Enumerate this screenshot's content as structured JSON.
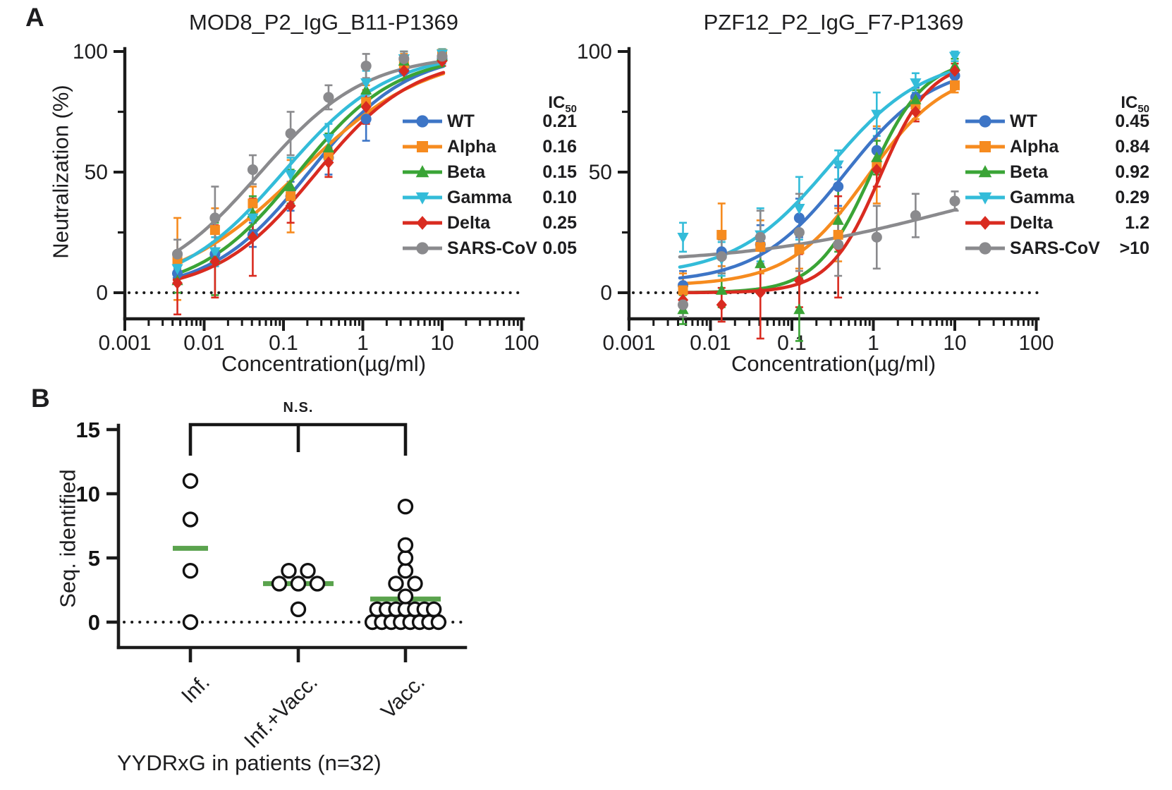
{
  "panel_a_label": "A",
  "panel_b_label": "B",
  "chart_data": {
    "dose_charts": [
      {
        "type": "line",
        "title": "MOD8_P2_IgG_B11-P1369",
        "xlabel": "Concentration(µg/ml)",
        "ylabel": "Neutralization (%)",
        "x_ticks": [
          "0.001",
          "0.01",
          "0.1",
          "1",
          "10",
          "100"
        ],
        "y_ticks": [
          "0",
          "50",
          "100"
        ],
        "ylim": [
          -15,
          100
        ],
        "grid": false,
        "legend_position": "right",
        "legend_header": {
          "text": "IC",
          "sub": "50"
        },
        "x": [
          0.0046,
          0.0137,
          0.041,
          0.123,
          0.37,
          1.1,
          3.3,
          10
        ],
        "series": [
          {
            "name": "WT",
            "marker": "circle",
            "color": "#3d75c6",
            "ic50": "0.21",
            "values": [
              8,
              16,
              24,
              40,
              56,
              72,
              92,
              97
            ],
            "errors": [
              4,
              5,
              5,
              6,
              7,
              9,
              4,
              2
            ],
            "curve": {
              "bottom": 0,
              "top": 100,
              "ec50": 0.21,
              "hill": 0.7
            }
          },
          {
            "name": "Alpha",
            "marker": "square",
            "color": "#f68b1f",
            "ic50": "0.16",
            "values": [
              14,
              26,
              37,
              40,
              57,
              79,
              95,
              99
            ],
            "errors": [
              17,
              9,
              7,
              15,
              9,
              7,
              4,
              2
            ],
            "curve": {
              "bottom": 0,
              "top": 100,
              "ec50": 0.16,
              "hill": 0.55
            }
          },
          {
            "name": "Beta",
            "marker": "triangle-up",
            "color": "#3aa436",
            "ic50": "0.15",
            "values": [
              5,
              14,
              33,
              44,
              60,
              84,
              96,
              98
            ],
            "errors": [
              5,
              15,
              7,
              7,
              6,
              9,
              4,
              2
            ],
            "curve": {
              "bottom": 0,
              "top": 99,
              "ec50": 0.15,
              "hill": 0.7
            }
          },
          {
            "name": "Gamma",
            "marker": "triangle-down",
            "color": "#33bcd9",
            "ic50": "0.10",
            "values": [
              10,
              17,
              31,
              49,
              64,
              87,
              97,
              99
            ],
            "errors": [
              6,
              6,
              7,
              7,
              6,
              5,
              3,
              2
            ],
            "curve": {
              "bottom": 0,
              "top": 100,
              "ec50": 0.1,
              "hill": 0.65
            }
          },
          {
            "name": "Delta",
            "marker": "diamond",
            "color": "#d92b20",
            "ic50": "0.25",
            "values": [
              4,
              13,
              23,
              36,
              54,
              77,
              92,
              96
            ],
            "errors": [
              13,
              15,
              16,
              7,
              6,
              7,
              4,
              2
            ],
            "curve": {
              "bottom": 0,
              "top": 98,
              "ec50": 0.25,
              "hill": 0.7
            }
          },
          {
            "name": "SARS-CoV",
            "marker": "circle",
            "color": "#8a8a8d",
            "ic50": "0.05",
            "values": [
              16,
              31,
              51,
              66,
              81,
              94,
              97,
              98
            ],
            "errors": [
              6,
              13,
              6,
              9,
              5,
              5,
              3,
              2
            ],
            "curve": {
              "bottom": 0,
              "top": 99,
              "ec50": 0.05,
              "hill": 0.65
            }
          }
        ]
      },
      {
        "type": "line",
        "title": "PZF12_P2_IgG_F7-P1369",
        "xlabel": "Concentration(µg/ml)",
        "ylabel": "",
        "x_ticks": [
          "0.001",
          "0.01",
          "0.1",
          "1",
          "10",
          "100"
        ],
        "y_ticks": [
          "0",
          "50",
          "100"
        ],
        "ylim": [
          -15,
          100
        ],
        "grid": false,
        "legend_position": "right",
        "legend_header": {
          "text": "IC",
          "sub": "50"
        },
        "x": [
          0.0046,
          0.0137,
          0.041,
          0.123,
          0.37,
          1.1,
          3.3,
          10
        ],
        "series": [
          {
            "name": "WT",
            "marker": "circle",
            "color": "#3d75c6",
            "ic50": "0.45",
            "values": [
              3,
              17,
              20,
              31,
              44,
              59,
              81,
              90
            ],
            "errors": [
              6,
              8,
              8,
              8,
              8,
              9,
              4,
              3
            ],
            "curve": {
              "bottom": 4,
              "top": 95,
              "ec50": 0.45,
              "hill": 0.8
            }
          },
          {
            "name": "Alpha",
            "marker": "square",
            "color": "#f68b1f",
            "ic50": "0.84",
            "values": [
              1,
              24,
              19,
              18,
              24,
              53,
              78,
              86
            ],
            "errors": [
              7,
              13,
              11,
              8,
              11,
              16,
              6,
              3
            ],
            "curve": {
              "bottom": 3,
              "top": 93,
              "ec50": 0.84,
              "hill": 0.9
            }
          },
          {
            "name": "Beta",
            "marker": "triangle-up",
            "color": "#3aa436",
            "ic50": "0.92",
            "values": [
              -7,
              1,
              12,
              -7,
              30,
              56,
              80,
              94
            ],
            "errors": [
              6,
              7,
              11,
              13,
              13,
              7,
              4,
              3
            ],
            "curve": {
              "bottom": 0,
              "top": 97,
              "ec50": 0.92,
              "hill": 1.3
            }
          },
          {
            "name": "Gamma",
            "marker": "triangle-down",
            "color": "#33bcd9",
            "ic50": "0.29",
            "values": [
              23,
              14,
              24,
              35,
              53,
              74,
              87,
              98
            ],
            "errors": [
              6,
              7,
              11,
              13,
              6,
              9,
              4,
              2
            ],
            "curve": {
              "bottom": 7,
              "top": 98,
              "ec50": 0.29,
              "hill": 0.75
            }
          },
          {
            "name": "Delta",
            "marker": "diamond",
            "color": "#d92b20",
            "ic50": "1.2",
            "values": [
              -3,
              -5,
              0,
              5,
              19,
              51,
              75,
              92
            ],
            "errors": [
              5,
              7,
              19,
              11,
              21,
              7,
              4,
              3
            ],
            "curve": {
              "bottom": 0,
              "top": 96,
              "ec50": 1.2,
              "hill": 1.4
            }
          },
          {
            "name": "SARS-CoV",
            "marker": "circle",
            "color": "#8a8a8d",
            "ic50": ">10",
            "values": [
              -5,
              15,
              23,
              25,
              20,
              23,
              32,
              38
            ],
            "errors": [
              5,
              7,
              11,
              16,
              13,
              13,
              9,
              4
            ],
            "curve": {
              "bottom": 12,
              "top": 55,
              "ec50": 8,
              "hill": 0.35
            }
          }
        ]
      }
    ],
    "scatter_chart": {
      "type": "scatter",
      "ylabel": "Seq. identified",
      "y_ticks": [
        "0",
        "5",
        "10",
        "15"
      ],
      "ylim": [
        0,
        15
      ],
      "caption": "YYDRxG in patients (n=32)",
      "significance": "N.S.",
      "mean_bar_color": "#5aa34d",
      "point_style": {
        "fill": "#ffffff",
        "stroke": "#111111"
      },
      "groups": [
        {
          "label": "Inf.",
          "mean": 5.75,
          "values": [
            11,
            8,
            4,
            0
          ]
        },
        {
          "label": "Inf.+Vacc.",
          "mean": 3.0,
          "values": [
            4,
            4,
            3,
            3,
            3,
            1
          ]
        },
        {
          "label": "Vacc.",
          "mean": 1.8,
          "values": [
            9,
            6,
            5,
            4,
            3,
            3,
            2,
            1,
            1,
            1,
            1,
            1,
            1,
            1,
            0,
            0,
            0,
            0,
            0,
            0,
            0,
            0
          ]
        }
      ]
    }
  }
}
